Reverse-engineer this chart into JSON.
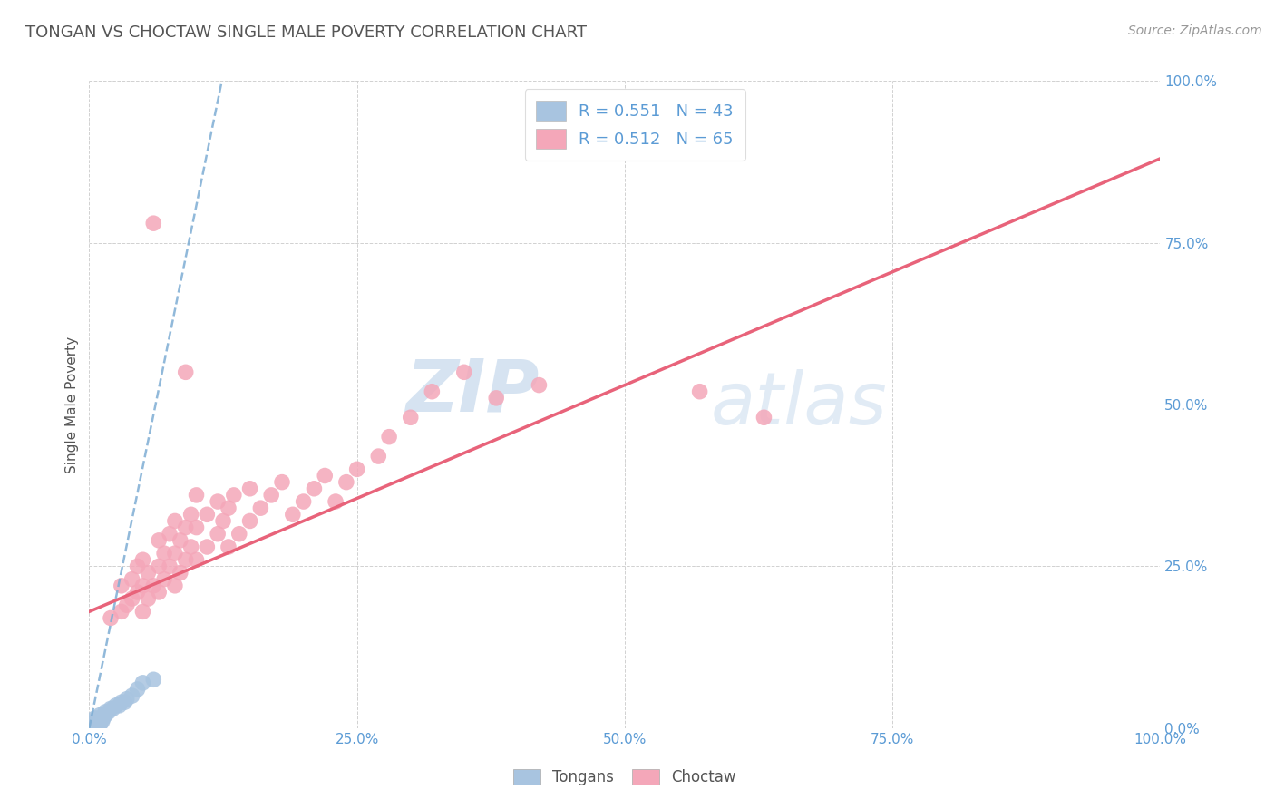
{
  "title": "TONGAN VS CHOCTAW SINGLE MALE POVERTY CORRELATION CHART",
  "source": "Source: ZipAtlas.com",
  "ylabel": "Single Male Poverty",
  "xlabel": "",
  "xlim": [
    0.0,
    1.0
  ],
  "ylim": [
    0.0,
    1.0
  ],
  "xticks": [
    0.0,
    0.25,
    0.5,
    0.75,
    1.0
  ],
  "yticks": [
    0.0,
    0.25,
    0.5,
    0.75,
    1.0
  ],
  "xticklabels": [
    "0.0%",
    "25.0%",
    "50.0%",
    "75.0%",
    "100.0%"
  ],
  "yticklabels": [
    "0.0%",
    "25.0%",
    "50.0%",
    "75.0%",
    "100.0%"
  ],
  "tongan_color": "#a8c4e0",
  "choctaw_color": "#f4a7b9",
  "tongan_line_color": "#7eadd4",
  "choctaw_line_color": "#e8637a",
  "legend_tongan_label": "R = 0.551   N = 43",
  "legend_choctaw_label": "R = 0.512   N = 65",
  "watermark_zip": "ZIP",
  "watermark_atlas": "atlas",
  "background_color": "#ffffff",
  "grid_color": "#cccccc",
  "title_color": "#555555",
  "axis_label_color": "#555555",
  "tick_color": "#5b9bd5",
  "tongan_scatter": [
    [
      0.0,
      0.0
    ],
    [
      0.0,
      0.0
    ],
    [
      0.001,
      0.0
    ],
    [
      0.002,
      0.0
    ],
    [
      0.002,
      0.005
    ],
    [
      0.003,
      0.0
    ],
    [
      0.003,
      0.005
    ],
    [
      0.004,
      0.0
    ],
    [
      0.004,
      0.005
    ],
    [
      0.004,
      0.01
    ],
    [
      0.005,
      0.0
    ],
    [
      0.005,
      0.005
    ],
    [
      0.005,
      0.01
    ],
    [
      0.005,
      0.015
    ],
    [
      0.006,
      0.0
    ],
    [
      0.006,
      0.005
    ],
    [
      0.006,
      0.01
    ],
    [
      0.007,
      0.0
    ],
    [
      0.007,
      0.005
    ],
    [
      0.007,
      0.015
    ],
    [
      0.008,
      0.005
    ],
    [
      0.008,
      0.01
    ],
    [
      0.009,
      0.005
    ],
    [
      0.01,
      0.005
    ],
    [
      0.01,
      0.01
    ],
    [
      0.01,
      0.02
    ],
    [
      0.012,
      0.01
    ],
    [
      0.012,
      0.015
    ],
    [
      0.013,
      0.015
    ],
    [
      0.015,
      0.02
    ],
    [
      0.015,
      0.025
    ],
    [
      0.018,
      0.025
    ],
    [
      0.02,
      0.03
    ],
    [
      0.022,
      0.03
    ],
    [
      0.025,
      0.035
    ],
    [
      0.028,
      0.035
    ],
    [
      0.03,
      0.04
    ],
    [
      0.033,
      0.04
    ],
    [
      0.035,
      0.045
    ],
    [
      0.04,
      0.05
    ],
    [
      0.045,
      0.06
    ],
    [
      0.05,
      0.07
    ],
    [
      0.06,
      0.075
    ]
  ],
  "choctaw_scatter": [
    [
      0.02,
      0.17
    ],
    [
      0.03,
      0.18
    ],
    [
      0.03,
      0.22
    ],
    [
      0.035,
      0.19
    ],
    [
      0.04,
      0.2
    ],
    [
      0.04,
      0.23
    ],
    [
      0.045,
      0.21
    ],
    [
      0.045,
      0.25
    ],
    [
      0.05,
      0.18
    ],
    [
      0.05,
      0.22
    ],
    [
      0.05,
      0.26
    ],
    [
      0.055,
      0.2
    ],
    [
      0.055,
      0.24
    ],
    [
      0.06,
      0.22
    ],
    [
      0.06,
      0.78
    ],
    [
      0.065,
      0.21
    ],
    [
      0.065,
      0.25
    ],
    [
      0.065,
      0.29
    ],
    [
      0.07,
      0.23
    ],
    [
      0.07,
      0.27
    ],
    [
      0.075,
      0.25
    ],
    [
      0.075,
      0.3
    ],
    [
      0.08,
      0.22
    ],
    [
      0.08,
      0.27
    ],
    [
      0.08,
      0.32
    ],
    [
      0.085,
      0.24
    ],
    [
      0.085,
      0.29
    ],
    [
      0.09,
      0.26
    ],
    [
      0.09,
      0.31
    ],
    [
      0.09,
      0.55
    ],
    [
      0.095,
      0.28
    ],
    [
      0.095,
      0.33
    ],
    [
      0.1,
      0.26
    ],
    [
      0.1,
      0.31
    ],
    [
      0.1,
      0.36
    ],
    [
      0.11,
      0.28
    ],
    [
      0.11,
      0.33
    ],
    [
      0.12,
      0.3
    ],
    [
      0.12,
      0.35
    ],
    [
      0.125,
      0.32
    ],
    [
      0.13,
      0.28
    ],
    [
      0.13,
      0.34
    ],
    [
      0.135,
      0.36
    ],
    [
      0.14,
      0.3
    ],
    [
      0.15,
      0.32
    ],
    [
      0.15,
      0.37
    ],
    [
      0.16,
      0.34
    ],
    [
      0.17,
      0.36
    ],
    [
      0.18,
      0.38
    ],
    [
      0.19,
      0.33
    ],
    [
      0.2,
      0.35
    ],
    [
      0.21,
      0.37
    ],
    [
      0.22,
      0.39
    ],
    [
      0.23,
      0.35
    ],
    [
      0.24,
      0.38
    ],
    [
      0.25,
      0.4
    ],
    [
      0.27,
      0.42
    ],
    [
      0.28,
      0.45
    ],
    [
      0.3,
      0.48
    ],
    [
      0.32,
      0.52
    ],
    [
      0.35,
      0.55
    ],
    [
      0.38,
      0.51
    ],
    [
      0.42,
      0.53
    ],
    [
      0.57,
      0.52
    ],
    [
      0.63,
      0.48
    ]
  ],
  "tongan_trendline": [
    [
      0.0,
      0.0
    ],
    [
      0.13,
      1.05
    ]
  ],
  "choctaw_trendline": [
    [
      0.0,
      0.18
    ],
    [
      1.0,
      0.88
    ]
  ]
}
